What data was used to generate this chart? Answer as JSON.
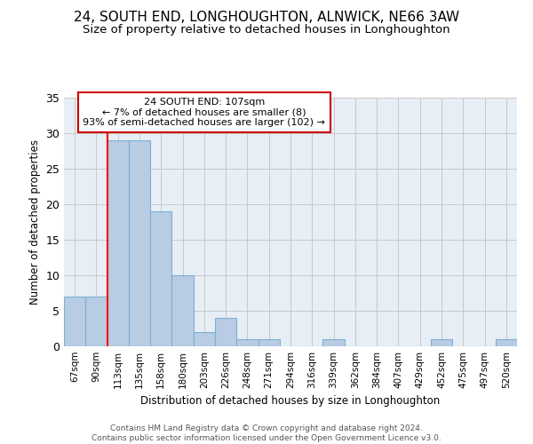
{
  "title": "24, SOUTH END, LONGHOUGHTON, ALNWICK, NE66 3AW",
  "subtitle": "Size of property relative to detached houses in Longhoughton",
  "xlabel": "Distribution of detached houses by size in Longhoughton",
  "ylabel": "Number of detached properties",
  "footer_line1": "Contains HM Land Registry data © Crown copyright and database right 2024.",
  "footer_line2": "Contains public sector information licensed under the Open Government Licence v3.0.",
  "categories": [
    "67sqm",
    "90sqm",
    "113sqm",
    "135sqm",
    "158sqm",
    "180sqm",
    "203sqm",
    "226sqm",
    "248sqm",
    "271sqm",
    "294sqm",
    "316sqm",
    "339sqm",
    "362sqm",
    "384sqm",
    "407sqm",
    "429sqm",
    "452sqm",
    "475sqm",
    "497sqm",
    "520sqm"
  ],
  "values": [
    7,
    7,
    29,
    29,
    19,
    10,
    2,
    4,
    1,
    1,
    0,
    0,
    1,
    0,
    0,
    0,
    0,
    1,
    0,
    0,
    1
  ],
  "bar_color": "#b8cce4",
  "bar_edge_color": "#7bafd4",
  "ylim": [
    0,
    35
  ],
  "yticks": [
    0,
    5,
    10,
    15,
    20,
    25,
    30,
    35
  ],
  "grid_color": "#c8c8c8",
  "bg_color": "#e8eef5",
  "red_line_index": 2,
  "annotation_text": "24 SOUTH END: 107sqm\n← 7% of detached houses are smaller (8)\n93% of semi-detached houses are larger (102) →",
  "annotation_box_color": "#ffffff",
  "annotation_box_edge_color": "#cc0000",
  "title_fontsize": 11,
  "subtitle_fontsize": 9.5
}
